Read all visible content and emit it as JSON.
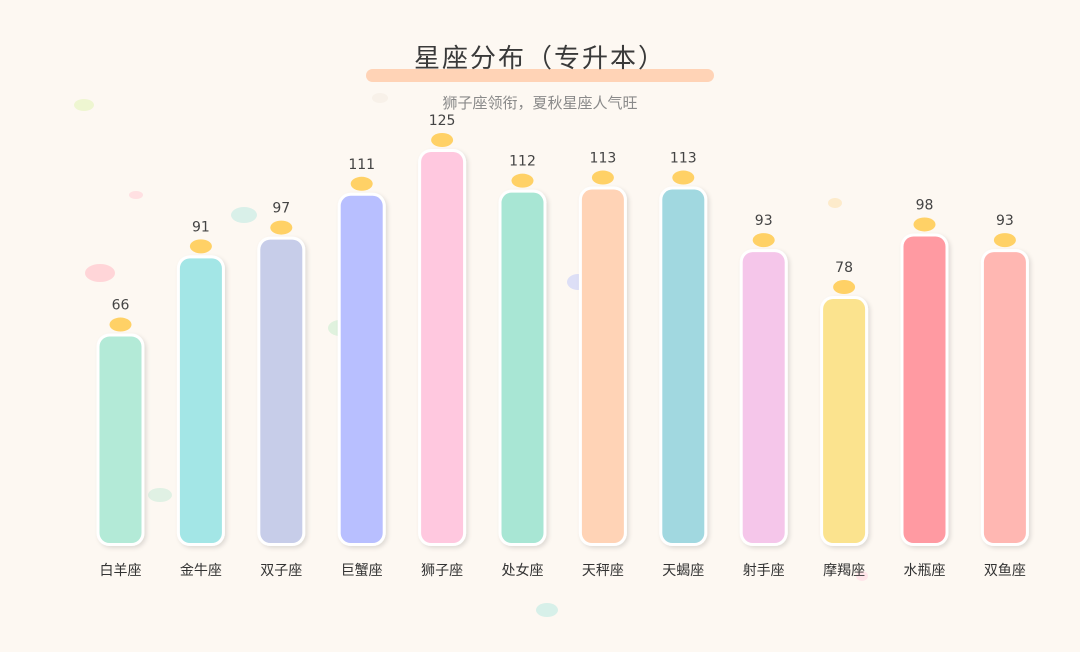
{
  "chart_data": {
    "type": "bar",
    "title": "星座分布（专升本）",
    "subtitle": "狮子座领衔，夏秋星座人气旺",
    "xlabel": "",
    "ylabel": "",
    "ylim": [
      0,
      125
    ],
    "grid": false,
    "categories": [
      "白羊座",
      "金牛座",
      "双子座",
      "巨蟹座",
      "狮子座",
      "处女座",
      "天秤座",
      "天蝎座",
      "射手座",
      "摩羯座",
      "水瓶座",
      "双鱼座"
    ],
    "values": [
      66,
      91,
      97,
      111,
      125,
      112,
      113,
      113,
      93,
      78,
      98,
      93
    ],
    "colors": [
      "#b3ead7",
      "#a3e6e6",
      "#c7cde9",
      "#b8bfff",
      "#ffc8df",
      "#a8e6d4",
      "#ffd3b6",
      "#a1d8e0",
      "#f5c6ea",
      "#fbe38e",
      "#ff9aa2",
      "#ffb7b2"
    ],
    "accent_color": "#ffd166",
    "title_underline_color": "#ffd3b6"
  }
}
